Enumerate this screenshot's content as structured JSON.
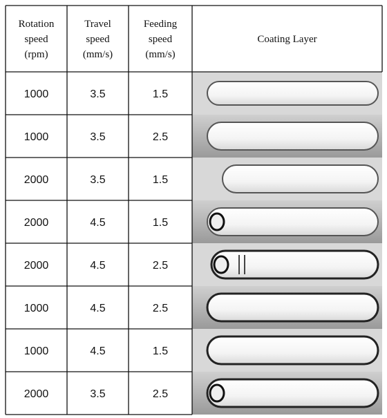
{
  "table": {
    "header": [
      [
        "Rotation",
        "speed",
        "(rpm)"
      ],
      [
        "Travel",
        "speed",
        "(mm/s)"
      ],
      [
        "Feeding",
        "speed",
        "(mm/s)"
      ],
      [
        "Coating Layer"
      ]
    ],
    "rows": [
      [
        "1000",
        "3.5",
        "1.5"
      ],
      [
        "1000",
        "3.5",
        "2.5"
      ],
      [
        "2000",
        "3.5",
        "1.5"
      ],
      [
        "2000",
        "4.5",
        "1.5"
      ],
      [
        "2000",
        "4.5",
        "2.5"
      ],
      [
        "1000",
        "4.5",
        "2.5"
      ],
      [
        "1000",
        "4.5",
        "1.5"
      ],
      [
        "2000",
        "3.5",
        "2.5"
      ]
    ]
  }
}
